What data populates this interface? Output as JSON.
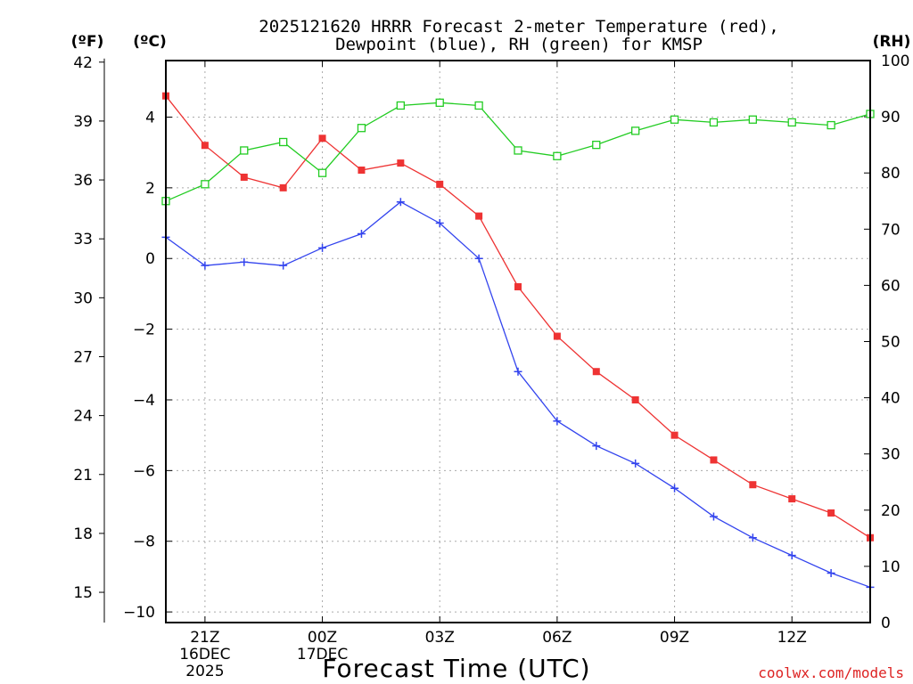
{
  "chart_data": {
    "type": "line",
    "title_line1": "2025121620 HRRR Forecast 2-meter Temperature (red),",
    "title_line2": "Dewpoint (blue), RH (green) for KMSP",
    "xlabel": "Forecast Time (UTC)",
    "unit_f": "(ºF)",
    "unit_c": "(ºC)",
    "unit_rh": "(RH)",
    "watermark": "coolwx.com/models",
    "x_hours": [
      0,
      1,
      2,
      3,
      4,
      5,
      6,
      7,
      8,
      9,
      10,
      11,
      12,
      13,
      14,
      15,
      16,
      17,
      18
    ],
    "x_range": [
      0,
      18
    ],
    "xticks": [
      {
        "hour": 1,
        "lines": [
          "21Z",
          "16DEC",
          "2025"
        ]
      },
      {
        "hour": 4,
        "lines": [
          "00Z",
          "17DEC"
        ]
      },
      {
        "hour": 7,
        "lines": [
          "03Z"
        ]
      },
      {
        "hour": 10,
        "lines": [
          "06Z"
        ]
      },
      {
        "hour": 13,
        "lines": [
          "09Z"
        ]
      },
      {
        "hour": 16,
        "lines": [
          "12Z"
        ]
      }
    ],
    "celsius_axis": {
      "range": [
        -10.3,
        5.6
      ],
      "ticks": [
        -10,
        -8,
        -6,
        -4,
        -2,
        0,
        2,
        4
      ]
    },
    "fahrenheit_axis": {
      "ticks": [
        15,
        18,
        21,
        24,
        27,
        30,
        33,
        36,
        39,
        42
      ]
    },
    "rh_axis": {
      "range": [
        0,
        100
      ],
      "ticks": [
        0,
        10,
        20,
        30,
        40,
        50,
        60,
        70,
        80,
        90,
        100
      ]
    },
    "series": [
      {
        "name": "Temperature",
        "unit": "C",
        "color": "#ee3333",
        "marker": "filled-square",
        "values": [
          4.6,
          3.2,
          2.3,
          2.0,
          3.4,
          2.5,
          2.7,
          2.1,
          1.2,
          -0.8,
          -2.2,
          -3.2,
          -4.0,
          -5.0,
          -5.7,
          -6.4,
          -6.8,
          -7.2,
          -7.9
        ]
      },
      {
        "name": "Dewpoint",
        "unit": "C",
        "color": "#3344ee",
        "marker": "plus",
        "values": [
          0.6,
          -0.2,
          -0.1,
          -0.2,
          0.3,
          0.7,
          1.6,
          1.0,
          0.0,
          -3.2,
          -4.6,
          -5.3,
          -5.8,
          -6.5,
          -7.3,
          -7.9,
          -8.4,
          -8.9,
          -9.3
        ]
      },
      {
        "name": "RH",
        "unit": "%",
        "color": "#22cc22",
        "marker": "open-square",
        "values": [
          75,
          78,
          84,
          85.5,
          80,
          88,
          92,
          92.5,
          92,
          84,
          83,
          85,
          87.5,
          89.5,
          89,
          89.5,
          89,
          88.5,
          90.5
        ]
      }
    ]
  }
}
